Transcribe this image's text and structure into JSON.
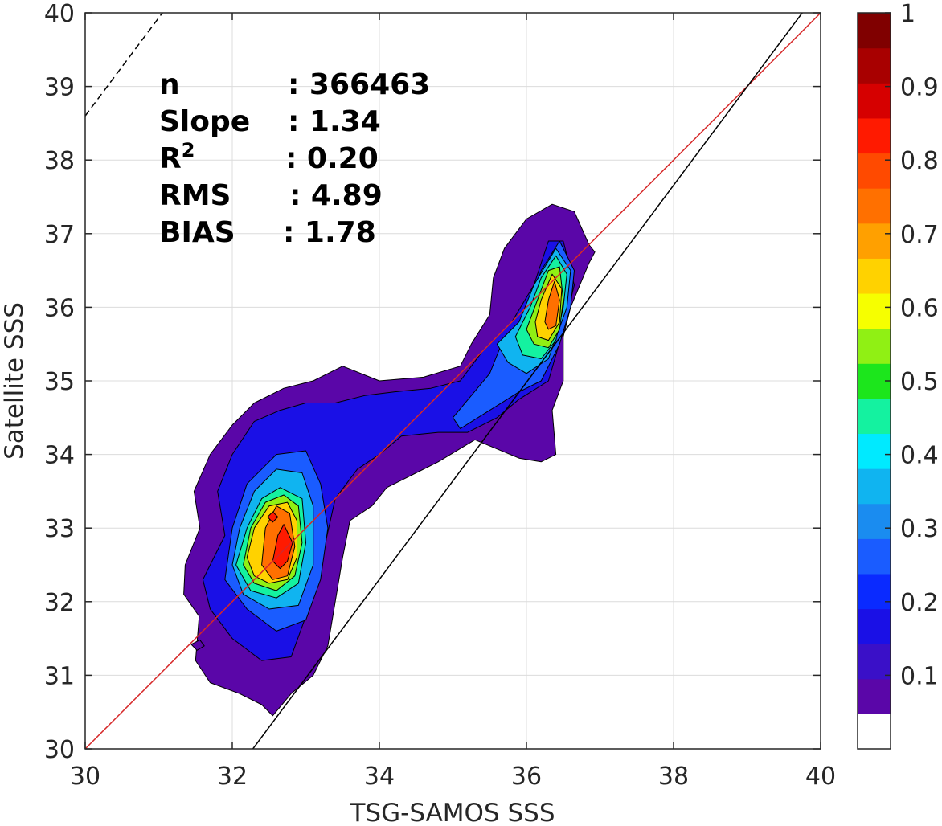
{
  "chart_data": {
    "type": "heatmap",
    "subtype": "filled-contour density scatter",
    "xlabel": "TSG-SAMOS SSS",
    "ylabel": "Satellite SSS",
    "xlim": [
      30,
      40
    ],
    "ylim": [
      30,
      40
    ],
    "xticks": [
      30,
      32,
      34,
      36,
      38,
      40
    ],
    "yticks": [
      30,
      31,
      32,
      33,
      34,
      35,
      36,
      37,
      38,
      39,
      40
    ],
    "grid": true,
    "stats": [
      {
        "label": "n",
        "value": ": 366463"
      },
      {
        "label": "Slope",
        "value": ": 1.34"
      },
      {
        "label": "R",
        "sup": "2",
        "value": ": 0.20"
      },
      {
        "label": "RMS",
        "value": ": 4.89"
      },
      {
        "label": "BIAS",
        "value": ": 1.78"
      }
    ],
    "lines": [
      {
        "name": "one-to-one",
        "color": "#d62728",
        "style": "solid",
        "points": [
          [
            30,
            30
          ],
          [
            40,
            40
          ]
        ]
      },
      {
        "name": "regression",
        "color": "#000000",
        "style": "solid",
        "points": [
          [
            32.28,
            30
          ],
          [
            39.75,
            40
          ]
        ]
      },
      {
        "name": "bias-offset",
        "color": "#000000",
        "style": "dashed",
        "points": [
          [
            30,
            38.6
          ],
          [
            31.05,
            40
          ]
        ]
      }
    ],
    "colorbar": {
      "min": 0,
      "max": 1,
      "ticks": [
        0.1,
        0.2,
        0.3,
        0.4,
        0.5,
        0.6,
        0.7,
        0.8,
        0.9,
        1
      ],
      "tick_labels": [
        "0.1",
        "0.2",
        "0.3",
        "0.4",
        "0.5",
        "0.6",
        "0.7",
        "0.8",
        "0.9",
        "1"
      ],
      "colors": [
        "#ffffff",
        "#5a06a8",
        "#3a10c8",
        "#1a10e6",
        "#0a2aff",
        "#1a5cff",
        "#1a8cf0",
        "#10b4f0",
        "#00eaff",
        "#14f2a0",
        "#1ce61c",
        "#90f014",
        "#f6ff00",
        "#ffd200",
        "#ffa000",
        "#ff7000",
        "#ff4a00",
        "#ff1a00",
        "#d60000",
        "#a80000",
        "#800000"
      ]
    },
    "density_levels": [
      {
        "level": 0.05,
        "polygons": [
          [
            [
              31.36,
              32.5
            ],
            [
              31.56,
              33.0
            ],
            [
              31.48,
              33.5
            ],
            [
              31.7,
              34.0
            ],
            [
              32.0,
              34.4
            ],
            [
              32.3,
              34.7
            ],
            [
              32.7,
              34.9
            ],
            [
              33.1,
              35.0
            ],
            [
              33.5,
              35.2
            ],
            [
              34.0,
              35.0
            ],
            [
              34.6,
              35.05
            ],
            [
              35.1,
              35.2
            ],
            [
              35.25,
              35.5
            ],
            [
              35.5,
              35.9
            ],
            [
              35.55,
              36.4
            ],
            [
              35.7,
              36.8
            ],
            [
              36.0,
              37.2
            ],
            [
              36.35,
              37.4
            ],
            [
              36.65,
              37.3
            ],
            [
              36.85,
              36.85
            ],
            [
              36.93,
              36.75
            ],
            [
              36.85,
              36.6
            ],
            [
              36.6,
              36.0
            ],
            [
              36.5,
              35.6
            ],
            [
              36.5,
              35.0
            ],
            [
              36.35,
              34.6
            ],
            [
              36.4,
              34.0
            ],
            [
              36.2,
              33.9
            ],
            [
              35.9,
              33.95
            ],
            [
              35.3,
              34.2
            ],
            [
              34.8,
              33.9
            ],
            [
              34.5,
              33.75
            ],
            [
              34.1,
              33.55
            ],
            [
              33.9,
              33.3
            ],
            [
              33.6,
              33.1
            ],
            [
              33.5,
              32.6
            ],
            [
              33.4,
              32.0
            ],
            [
              33.3,
              31.4
            ],
            [
              33.1,
              31.0
            ],
            [
              32.8,
              30.75
            ],
            [
              32.55,
              30.45
            ],
            [
              32.4,
              30.6
            ],
            [
              32.1,
              30.75
            ],
            [
              31.7,
              30.9
            ],
            [
              31.5,
              31.2
            ],
            [
              31.55,
              31.8
            ],
            [
              31.34,
              32.1
            ]
          ],
          [
            [
              31.44,
              31.42
            ],
            [
              31.56,
              31.48
            ],
            [
              31.62,
              31.4
            ],
            [
              31.52,
              31.34
            ]
          ]
        ]
      },
      {
        "level": 0.15,
        "polygons": [
          [
            [
              31.6,
              32.3
            ],
            [
              31.9,
              32.9
            ],
            [
              31.8,
              33.5
            ],
            [
              32.0,
              34.0
            ],
            [
              32.3,
              34.45
            ],
            [
              32.65,
              34.6
            ],
            [
              33.0,
              34.7
            ],
            [
              33.4,
              34.7
            ],
            [
              33.8,
              34.8
            ],
            [
              34.2,
              34.85
            ],
            [
              34.7,
              34.9
            ],
            [
              35.1,
              35.0
            ],
            [
              35.4,
              35.4
            ],
            [
              35.8,
              35.8
            ],
            [
              36.1,
              36.3
            ],
            [
              36.3,
              36.9
            ],
            [
              36.5,
              36.9
            ],
            [
              36.65,
              36.3
            ],
            [
              36.5,
              35.7
            ],
            [
              36.3,
              35.0
            ],
            [
              35.9,
              34.75
            ],
            [
              35.6,
              34.5
            ],
            [
              35.2,
              34.3
            ],
            [
              34.8,
              34.3
            ],
            [
              34.3,
              34.25
            ],
            [
              34.0,
              34.0
            ],
            [
              33.7,
              33.8
            ],
            [
              33.4,
              33.4
            ],
            [
              33.2,
              32.5
            ],
            [
              33.0,
              31.8
            ],
            [
              32.8,
              31.25
            ],
            [
              32.4,
              31.2
            ],
            [
              32.0,
              31.5
            ],
            [
              31.7,
              31.9
            ]
          ]
        ]
      },
      {
        "level": 0.25,
        "polygons": [
          [
            [
              31.9,
              32.3
            ],
            [
              32.0,
              33.0
            ],
            [
              32.2,
              33.6
            ],
            [
              32.6,
              34.0
            ],
            [
              33.0,
              34.05
            ],
            [
              33.2,
              33.6
            ],
            [
              33.3,
              33.0
            ],
            [
              33.2,
              32.3
            ],
            [
              33.0,
              31.75
            ],
            [
              32.6,
              31.6
            ],
            [
              32.2,
              31.9
            ]
          ],
          [
            [
              35.0,
              34.5
            ],
            [
              35.5,
              35.1
            ],
            [
              35.7,
              35.6
            ],
            [
              36.0,
              35.9
            ],
            [
              36.2,
              36.5
            ],
            [
              36.45,
              36.9
            ],
            [
              36.65,
              36.5
            ],
            [
              36.6,
              36.0
            ],
            [
              36.45,
              35.5
            ],
            [
              36.2,
              35.0
            ],
            [
              35.9,
              34.85
            ],
            [
              35.5,
              34.6
            ],
            [
              35.1,
              34.35
            ]
          ]
        ]
      },
      {
        "level": 0.35,
        "polygons": [
          [
            [
              32.0,
              32.5
            ],
            [
              32.1,
              33.0
            ],
            [
              32.3,
              33.5
            ],
            [
              32.6,
              33.8
            ],
            [
              32.95,
              33.75
            ],
            [
              33.1,
              33.3
            ],
            [
              33.1,
              32.5
            ],
            [
              32.9,
              31.95
            ],
            [
              32.5,
              31.9
            ],
            [
              32.15,
              32.1
            ]
          ],
          [
            [
              35.6,
              35.5
            ],
            [
              35.9,
              35.8
            ],
            [
              36.1,
              36.3
            ],
            [
              36.4,
              36.8
            ],
            [
              36.6,
              36.5
            ],
            [
              36.55,
              36.0
            ],
            [
              36.3,
              35.3
            ],
            [
              36.0,
              35.1
            ],
            [
              35.75,
              35.25
            ]
          ]
        ]
      },
      {
        "level": 0.45,
        "polygons": [
          [
            [
              32.05,
              32.5
            ],
            [
              32.2,
              33.0
            ],
            [
              32.4,
              33.4
            ],
            [
              32.65,
              33.55
            ],
            [
              32.95,
              33.4
            ],
            [
              33.0,
              32.8
            ],
            [
              32.9,
              32.25
            ],
            [
              32.6,
              32.05
            ],
            [
              32.25,
              32.15
            ]
          ],
          [
            [
              35.85,
              35.6
            ],
            [
              36.05,
              36.0
            ],
            [
              36.2,
              36.4
            ],
            [
              36.4,
              36.7
            ],
            [
              36.55,
              36.45
            ],
            [
              36.5,
              36.0
            ],
            [
              36.4,
              35.55
            ],
            [
              36.2,
              35.3
            ],
            [
              35.95,
              35.35
            ]
          ]
        ]
      },
      {
        "level": 0.55,
        "polygons": [
          [
            [
              32.15,
              32.5
            ],
            [
              32.25,
              33.0
            ],
            [
              32.45,
              33.35
            ],
            [
              32.7,
              33.45
            ],
            [
              32.9,
              33.3
            ],
            [
              32.95,
              32.8
            ],
            [
              32.85,
              32.35
            ],
            [
              32.6,
              32.15
            ],
            [
              32.3,
              32.25
            ]
          ],
          [
            [
              36.0,
              35.7
            ],
            [
              36.15,
              36.1
            ],
            [
              36.3,
              36.5
            ],
            [
              36.45,
              36.55
            ],
            [
              36.5,
              36.1
            ],
            [
              36.45,
              35.7
            ],
            [
              36.3,
              35.45
            ],
            [
              36.1,
              35.5
            ]
          ]
        ]
      },
      {
        "level": 0.65,
        "polygons": [
          [
            [
              32.2,
              32.6
            ],
            [
              32.3,
              33.0
            ],
            [
              32.5,
              33.3
            ],
            [
              32.75,
              33.35
            ],
            [
              32.88,
              33.1
            ],
            [
              32.88,
              32.6
            ],
            [
              32.75,
              32.3
            ],
            [
              32.5,
              32.25
            ],
            [
              32.3,
              32.35
            ]
          ],
          [
            [
              36.12,
              35.8
            ],
            [
              36.2,
              36.1
            ],
            [
              36.35,
              36.45
            ],
            [
              36.48,
              36.25
            ],
            [
              36.45,
              35.8
            ],
            [
              36.3,
              35.55
            ],
            [
              36.15,
              35.6
            ]
          ]
        ]
      },
      {
        "level": 0.75,
        "polygons": [
          [
            [
              32.4,
              32.5
            ],
            [
              32.45,
              33.0
            ],
            [
              32.6,
              33.3
            ],
            [
              32.78,
              33.2
            ],
            [
              32.85,
              32.75
            ],
            [
              32.75,
              32.35
            ],
            [
              32.55,
              32.3
            ]
          ],
          [
            [
              36.25,
              35.8
            ],
            [
              36.3,
              36.1
            ],
            [
              36.38,
              36.35
            ],
            [
              36.45,
              36.1
            ],
            [
              36.4,
              35.75
            ],
            [
              36.3,
              35.7
            ]
          ]
        ]
      },
      {
        "level": 0.85,
        "polygons": [
          [
            [
              32.55,
              32.55
            ],
            [
              32.62,
              32.9
            ],
            [
              32.7,
              33.05
            ],
            [
              32.82,
              32.8
            ],
            [
              32.75,
              32.55
            ],
            [
              32.65,
              32.45
            ]
          ],
          [
            [
              32.48,
              33.15
            ],
            [
              32.55,
              33.22
            ],
            [
              32.62,
              33.15
            ],
            [
              32.55,
              33.08
            ]
          ]
        ]
      }
    ]
  }
}
